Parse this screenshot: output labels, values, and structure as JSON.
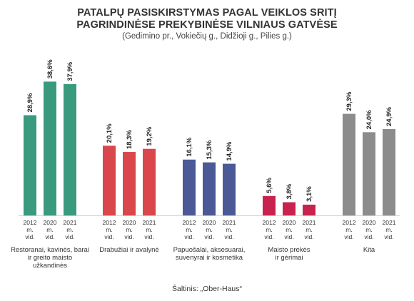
{
  "title_line1": "PATALPŲ PASISKIRSTYMAS PAGAL VEIKLOS SRITĮ",
  "title_line2": "PAGRINDINĖSE PREKYBINĖSE VILNIAUS GATVĖSE",
  "subtitle": "(Gedimino pr., Vokiečių g., Didžioji g., Pilies g.)",
  "source": "Šaltinis: „Ober-Haus“",
  "chart_data": {
    "type": "bar",
    "title": "PATALPŲ PASISKIRSTYMAS PAGAL VEIKLOS SRITĮ PAGRINDINĖSE PREKYBINĖSE VILNIAUS GATVĖSE",
    "subtitle": "(Gedimino pr., Vokiečių g., Didžioji g., Pilies g.)",
    "ylim": [
      0,
      40
    ],
    "grid": false,
    "legend": "none",
    "years": [
      "2012 m. vid.",
      "2020 m. vid.",
      "2021 m. vid."
    ],
    "groups": [
      {
        "label": "Restoranai, kavinės, barai ir greito maisto užkandinės",
        "label_lines": [
          "Restoranai, kavinės, barai",
          "ir greito maisto",
          "užkandinės"
        ],
        "color": "#3a9a7e",
        "values": [
          28.9,
          38.6,
          37.9
        ],
        "value_labels": [
          "28,9%",
          "38,6%",
          "37,9%"
        ]
      },
      {
        "label": "Drabužiai ir avalynė",
        "label_lines": [
          "Drabužiai ir avalynė"
        ],
        "color": "#d9474c",
        "values": [
          20.1,
          18.3,
          19.2
        ],
        "value_labels": [
          "20,1%",
          "18,3%",
          "19,2%"
        ]
      },
      {
        "label": "Papuošalai, aksesuarai, suvenyrai ir kosmetika",
        "label_lines": [
          "Papuošalai, aksesuarai,",
          "suvenyrai ir kosmetika"
        ],
        "color": "#4b5a96",
        "values": [
          16.1,
          15.3,
          14.9
        ],
        "value_labels": [
          "16,1%",
          "15,3%",
          "14,9%"
        ]
      },
      {
        "label": "Maisto prekės ir gėrimai",
        "label_lines": [
          "Maisto prekės",
          "ir gėrimai"
        ],
        "color": "#c8234f",
        "values": [
          5.6,
          3.8,
          3.1
        ],
        "value_labels": [
          "5,6%",
          "3,8%",
          "3,1%"
        ]
      },
      {
        "label": "Kita",
        "label_lines": [
          "Kita"
        ],
        "color": "#8c8c8c",
        "values": [
          29.3,
          24.0,
          24.9
        ],
        "value_labels": [
          "29,3%",
          "24,0%",
          "24,9%"
        ]
      }
    ]
  }
}
